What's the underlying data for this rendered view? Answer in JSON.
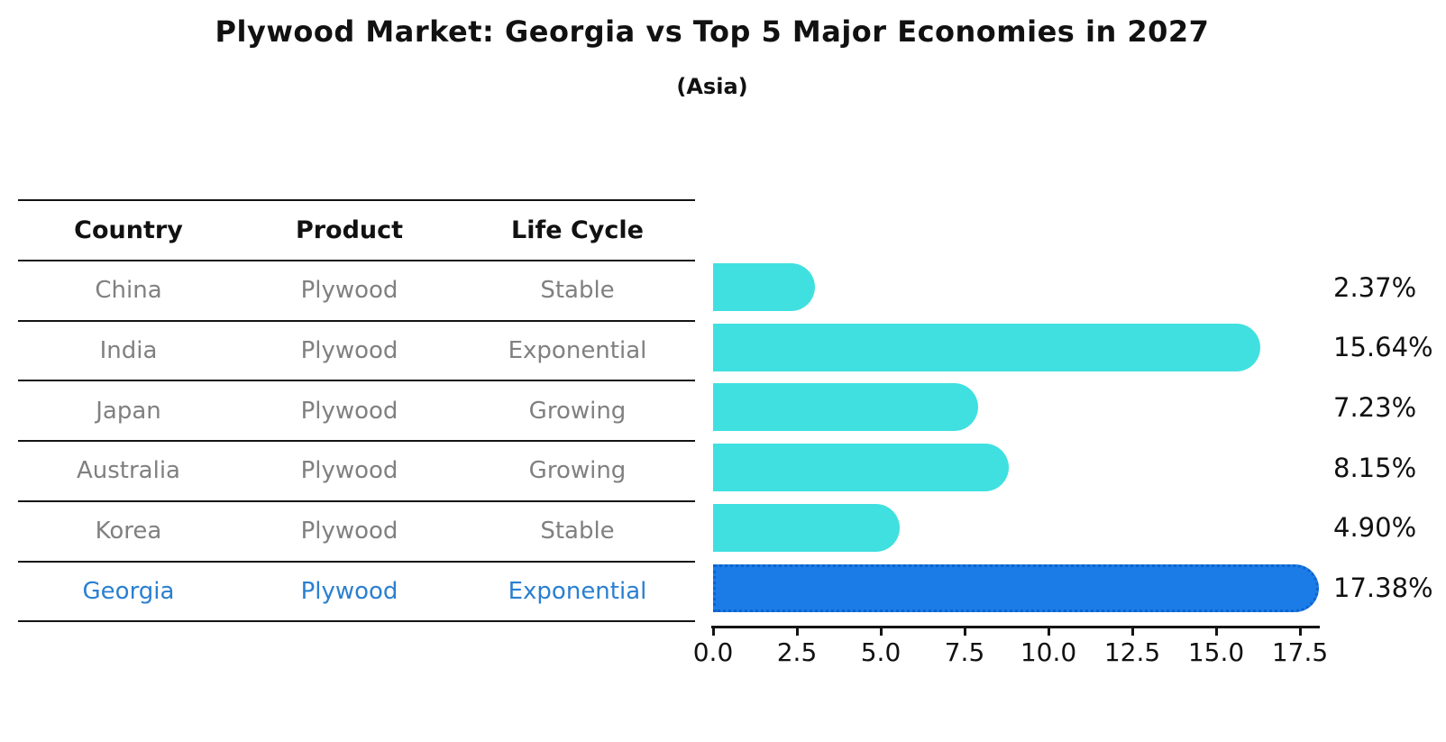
{
  "title": "Plywood Market: Georgia vs Top 5 Major Economies in 2027",
  "subtitle": "(Asia)",
  "table": {
    "headers": [
      "Country",
      "Product",
      "Life Cycle"
    ],
    "rows": [
      {
        "country": "China",
        "product": "Plywood",
        "life_cycle": "Stable"
      },
      {
        "country": "India",
        "product": "Plywood",
        "life_cycle": "Exponential"
      },
      {
        "country": "Japan",
        "product": "Plywood",
        "life_cycle": "Growing"
      },
      {
        "country": "Australia",
        "product": "Plywood",
        "life_cycle": "Growing"
      },
      {
        "country": "Korea",
        "product": "Plywood",
        "life_cycle": "Stable"
      },
      {
        "country": "Georgia",
        "product": "Plywood",
        "life_cycle": "Exponential"
      }
    ],
    "highlight_row": "Georgia"
  },
  "chart_data": {
    "type": "bar",
    "orientation": "horizontal",
    "title": "Plywood Market: Georgia vs Top 5 Major Economies in 2027",
    "subtitle": "(Asia)",
    "categories": [
      "China",
      "India",
      "Japan",
      "Australia",
      "Korea",
      "Georgia"
    ],
    "values": [
      2.37,
      15.64,
      7.23,
      8.15,
      4.9,
      17.38
    ],
    "value_labels": [
      "2.37%",
      "15.64%",
      "7.23%",
      "8.15%",
      "4.90%",
      "17.38%"
    ],
    "xticks": [
      0.0,
      2.5,
      5.0,
      7.5,
      10.0,
      12.5,
      15.0,
      17.5
    ],
    "xtick_labels": [
      "0.0",
      "2.5",
      "5.0",
      "7.5",
      "10.0",
      "12.5",
      "15.0",
      "17.5"
    ],
    "xlim": [
      0,
      18.1
    ],
    "grid": false,
    "legend": false,
    "bar_color": "#40E0E0",
    "highlight_index": 5,
    "highlight_color": "#1B7CE8",
    "highlight_border_color": "#0E63CC",
    "highlight_text_color": "#2A7FD0",
    "text_gray": "#808080",
    "axis_color": "#141414"
  }
}
